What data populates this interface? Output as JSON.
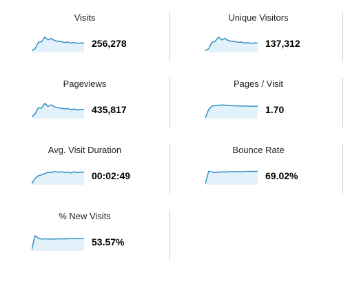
{
  "colors": {
    "line": "#2f8fc4",
    "fill": "#e3f1fa",
    "divider": "#c8c8c8"
  },
  "metrics": [
    {
      "label": "Visits",
      "value": "256,278",
      "spark": [
        0.1,
        0.2,
        0.55,
        0.6,
        0.85,
        0.7,
        0.78,
        0.66,
        0.62,
        0.6,
        0.55,
        0.58,
        0.52,
        0.55,
        0.5,
        0.53,
        0.52
      ]
    },
    {
      "label": "Unique Visitors",
      "value": "137,312",
      "spark": [
        0.1,
        0.2,
        0.55,
        0.62,
        0.85,
        0.7,
        0.78,
        0.66,
        0.62,
        0.6,
        0.56,
        0.58,
        0.52,
        0.55,
        0.5,
        0.53,
        0.52
      ]
    },
    {
      "label": "Pageviews",
      "value": "435,817",
      "spark": [
        0.1,
        0.25,
        0.6,
        0.58,
        0.85,
        0.68,
        0.76,
        0.65,
        0.6,
        0.58,
        0.54,
        0.56,
        0.5,
        0.53,
        0.48,
        0.52,
        0.5
      ]
    },
    {
      "label": "Pages / Visit",
      "value": "1.70",
      "spark": [
        0.05,
        0.5,
        0.7,
        0.72,
        0.74,
        0.76,
        0.75,
        0.73,
        0.72,
        0.71,
        0.7,
        0.7,
        0.7,
        0.69,
        0.69,
        0.69,
        0.69
      ]
    },
    {
      "label": "Avg. Visit Duration",
      "value": "00:02:49",
      "spark": [
        0.05,
        0.35,
        0.5,
        0.55,
        0.62,
        0.7,
        0.68,
        0.74,
        0.7,
        0.72,
        0.68,
        0.7,
        0.66,
        0.72,
        0.68,
        0.7,
        0.69
      ]
    },
    {
      "label": "Bounce Rate",
      "value": "69.02%",
      "spark": [
        0.05,
        0.75,
        0.72,
        0.68,
        0.7,
        0.72,
        0.71,
        0.72,
        0.73,
        0.72,
        0.74,
        0.73,
        0.74,
        0.75,
        0.74,
        0.75,
        0.75
      ]
    },
    {
      "label": "% New Visits",
      "value": "53.57%",
      "spark": [
        0.05,
        0.85,
        0.72,
        0.65,
        0.68,
        0.66,
        0.67,
        0.66,
        0.68,
        0.67,
        0.68,
        0.67,
        0.69,
        0.68,
        0.69,
        0.68,
        0.7
      ]
    }
  ]
}
